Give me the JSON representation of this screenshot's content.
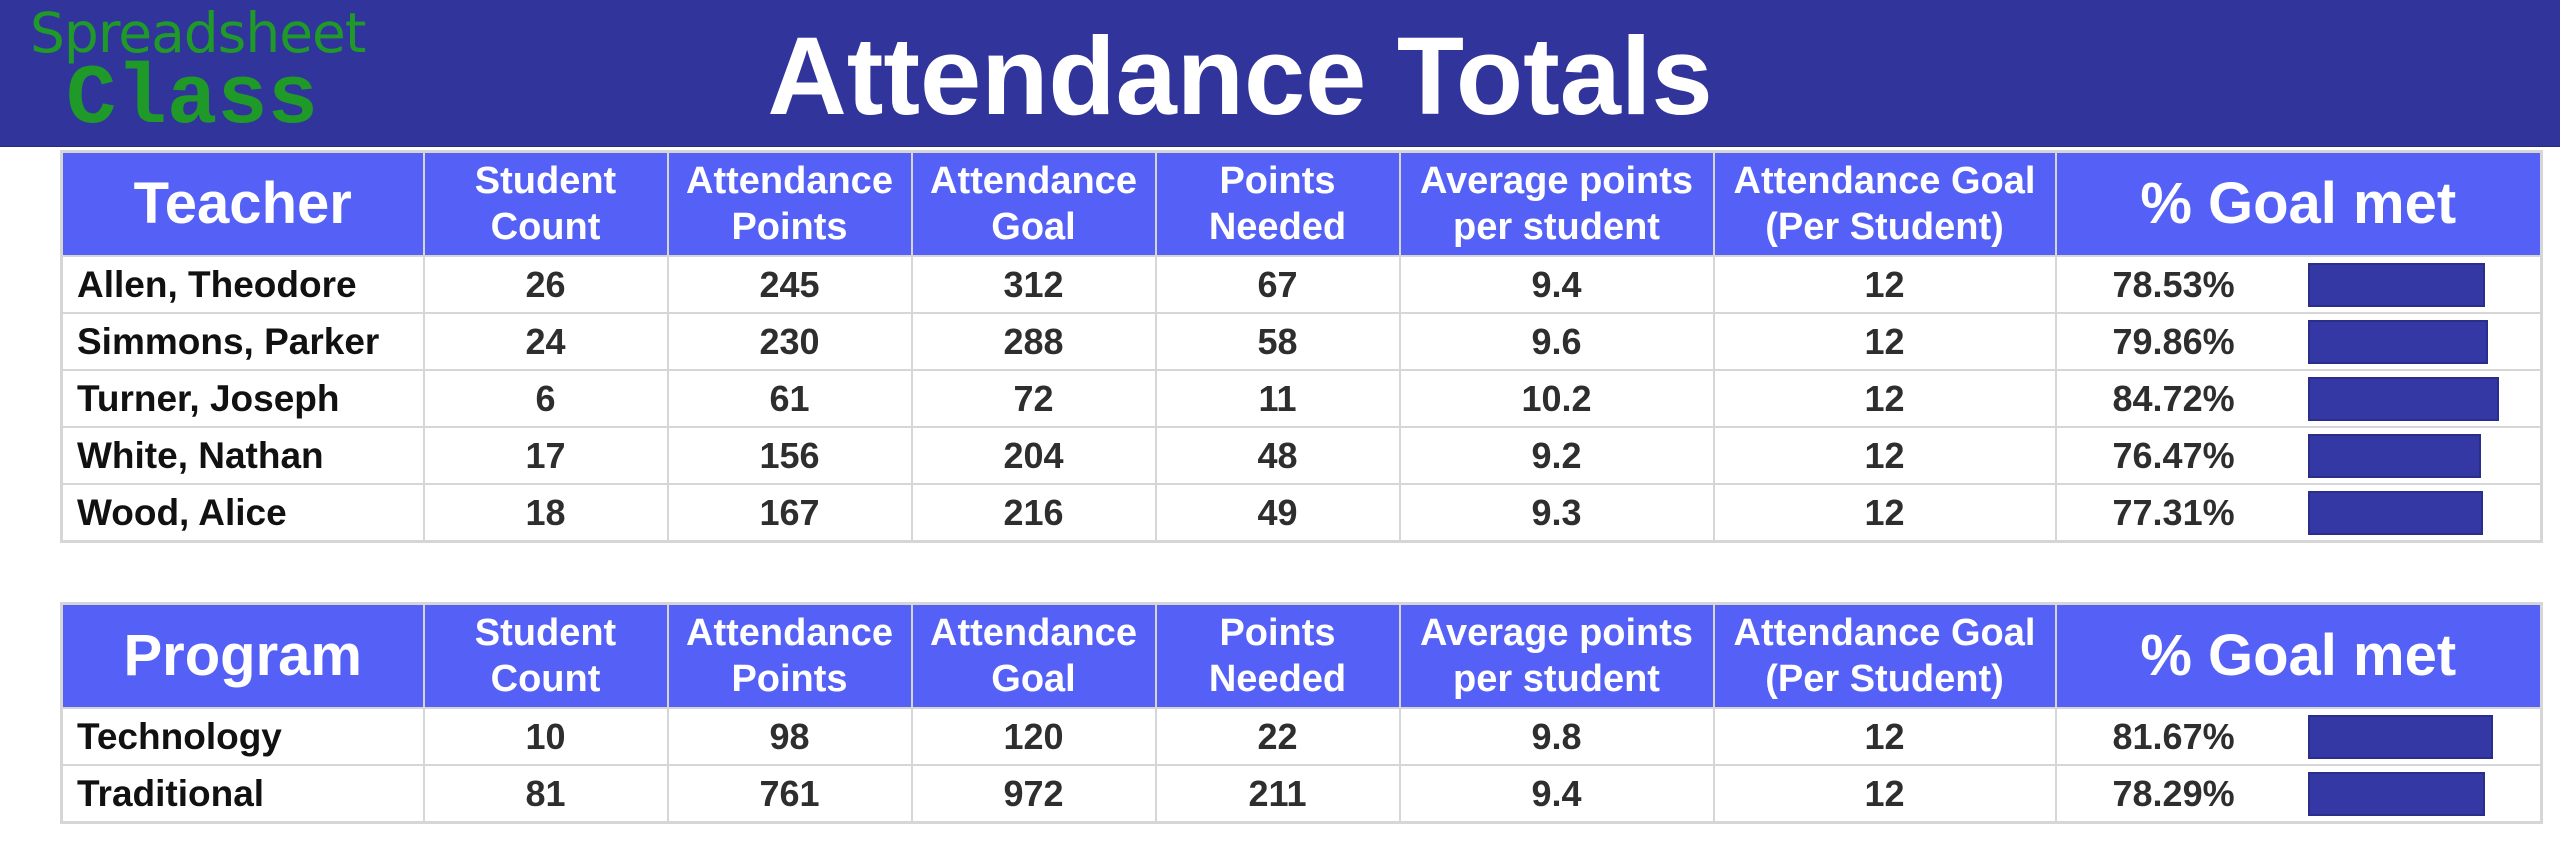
{
  "banner": {
    "logo_line1": "Spreadsheet",
    "logo_line2": "Class",
    "title": "Attendance Totals",
    "background_color": "#31349b",
    "logo_color": "#1f9a28"
  },
  "colors": {
    "header_background": "#5561f6",
    "bar_color": "#3438a4",
    "grid_line": "#d6d6d6"
  },
  "teacher_table": {
    "headers": [
      "Teacher",
      "Student\nCount",
      "Attendance\nPoints",
      "Attendance\nGoal",
      "Points\nNeeded",
      "Average points\nper student",
      "Attendance Goal\n(Per Student)",
      "% Goal met"
    ],
    "rows": [
      {
        "name": "Allen, Theodore",
        "student_count": "26",
        "attendance_points": "245",
        "attendance_goal": "312",
        "points_needed": "67",
        "avg_points": "9.4",
        "goal_per_student": "12",
        "pct_goal_met": "78.53%",
        "bar_fraction": 0.7853
      },
      {
        "name": "Simmons, Parker",
        "student_count": "24",
        "attendance_points": "230",
        "attendance_goal": "288",
        "points_needed": "58",
        "avg_points": "9.6",
        "goal_per_student": "12",
        "pct_goal_met": "79.86%",
        "bar_fraction": 0.7986
      },
      {
        "name": "Turner, Joseph",
        "student_count": "6",
        "attendance_points": "61",
        "attendance_goal": "72",
        "points_needed": "11",
        "avg_points": "10.2",
        "goal_per_student": "12",
        "pct_goal_met": "84.72%",
        "bar_fraction": 0.8472
      },
      {
        "name": "White, Nathan",
        "student_count": "17",
        "attendance_points": "156",
        "attendance_goal": "204",
        "points_needed": "48",
        "avg_points": "9.2",
        "goal_per_student": "12",
        "pct_goal_met": "76.47%",
        "bar_fraction": 0.7647
      },
      {
        "name": "Wood, Alice",
        "student_count": "18",
        "attendance_points": "167",
        "attendance_goal": "216",
        "points_needed": "49",
        "avg_points": "9.3",
        "goal_per_student": "12",
        "pct_goal_met": "77.31%",
        "bar_fraction": 0.7731
      }
    ]
  },
  "program_table": {
    "headers": [
      "Program",
      "Student\nCount",
      "Attendance\nPoints",
      "Attendance\nGoal",
      "Points\nNeeded",
      "Average points\nper student",
      "Attendance Goal\n(Per Student)",
      "% Goal met"
    ],
    "rows": [
      {
        "name": "Technology",
        "student_count": "10",
        "attendance_points": "98",
        "attendance_goal": "120",
        "points_needed": "22",
        "avg_points": "9.8",
        "goal_per_student": "12",
        "pct_goal_met": "81.67%",
        "bar_fraction": 0.8167
      },
      {
        "name": "Traditional",
        "student_count": "81",
        "attendance_points": "761",
        "attendance_goal": "972",
        "points_needed": "211",
        "avg_points": "9.4",
        "goal_per_student": "12",
        "pct_goal_met": "78.29%",
        "bar_fraction": 0.7829
      }
    ]
  }
}
